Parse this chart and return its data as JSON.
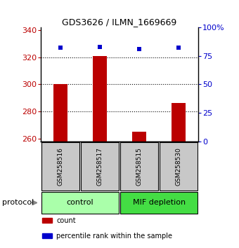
{
  "title": "GDS3626 / ILMN_1669669",
  "samples": [
    "GSM258516",
    "GSM258517",
    "GSM258515",
    "GSM258530"
  ],
  "bar_values": [
    300,
    321,
    265,
    286
  ],
  "percentile_values": [
    82,
    83,
    81,
    82
  ],
  "bar_color": "#bb0000",
  "percentile_color": "#0000cc",
  "ylim_left": [
    258,
    342
  ],
  "ylim_right": [
    0,
    100
  ],
  "yticks_left": [
    260,
    280,
    300,
    320,
    340
  ],
  "yticks_right": [
    0,
    25,
    50,
    75,
    100
  ],
  "ytick_labels_right": [
    "0",
    "25",
    "50",
    "75",
    "100%"
  ],
  "grid_lines": [
    280,
    300,
    320
  ],
  "groups": [
    {
      "label": "control",
      "indices": [
        0,
        1
      ],
      "color": "#aaffaa"
    },
    {
      "label": "MIF depletion",
      "indices": [
        2,
        3
      ],
      "color": "#44dd44"
    }
  ],
  "protocol_label": "protocol",
  "legend_items": [
    {
      "color": "#bb0000",
      "label": "count"
    },
    {
      "color": "#0000cc",
      "label": "percentile rank within the sample"
    }
  ],
  "sample_box_color": "#c8c8c8",
  "bar_bottom": 258,
  "bar_width": 0.35
}
